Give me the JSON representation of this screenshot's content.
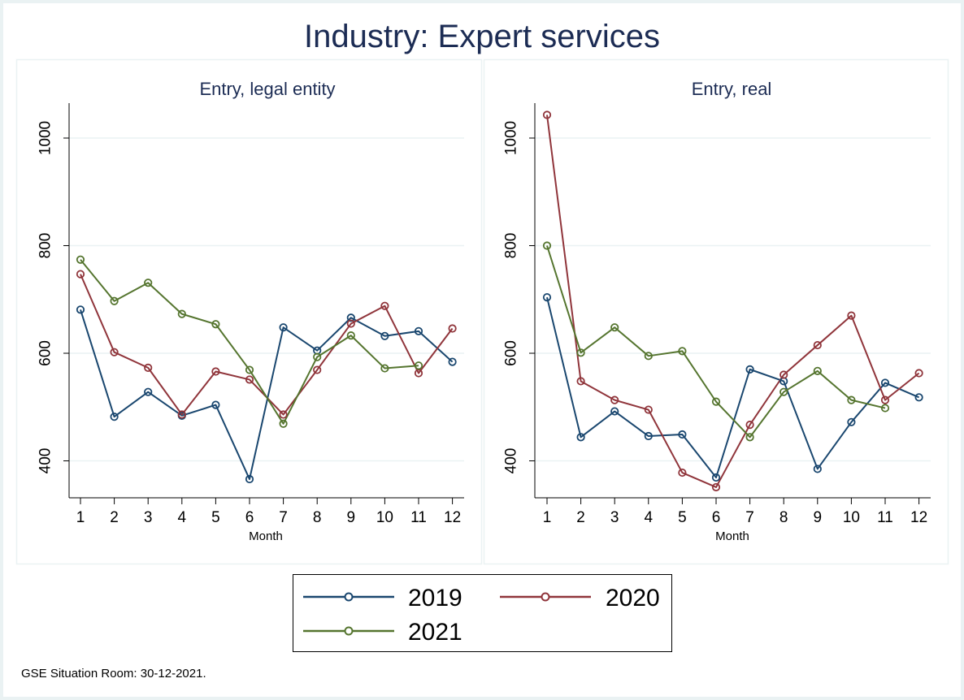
{
  "chart_data": {
    "type": "line",
    "title": "Industry: Expert services",
    "note": "GSE Situation Room: 30-12-2021.",
    "legend": {
      "placement": "bottom",
      "entries": [
        {
          "name": "2019",
          "color": "#1a476f"
        },
        {
          "name": "2020",
          "color": "#90353b"
        },
        {
          "name": "2021",
          "color": "#55752f"
        }
      ]
    },
    "panels": [
      {
        "title": "Entry, legal entity",
        "xlabel": "Month",
        "ylabel": "",
        "x": [
          1,
          2,
          3,
          4,
          5,
          6,
          7,
          8,
          9,
          10,
          11,
          12
        ],
        "x_ticks": [
          "1",
          "2",
          "3",
          "4",
          "5",
          "6",
          "7",
          "8",
          "9",
          "10",
          "11",
          "12"
        ],
        "y_ticks": [
          "400",
          "600",
          "800",
          "1000"
        ],
        "ylim": [
          330,
          1065
        ],
        "grid": true,
        "series": [
          {
            "name": "2019",
            "color": "#1a476f",
            "values": [
              681,
              482,
              528,
              484,
              504,
              366,
              648,
              605,
              666,
              632,
              641,
              584
            ]
          },
          {
            "name": "2020",
            "color": "#90353b",
            "values": [
              747,
              602,
              573,
              486,
              566,
              551,
              486,
              569,
              655,
              688,
              563,
              646
            ]
          },
          {
            "name": "2021",
            "color": "#55752f",
            "values": [
              774,
              697,
              731,
              673,
              654,
              569,
              469,
              593,
              633,
              572,
              577,
              null
            ]
          }
        ]
      },
      {
        "title": "Entry, real",
        "xlabel": "Month",
        "ylabel": "",
        "x": [
          1,
          2,
          3,
          4,
          5,
          6,
          7,
          8,
          9,
          10,
          11,
          12
        ],
        "x_ticks": [
          "1",
          "2",
          "3",
          "4",
          "5",
          "6",
          "7",
          "8",
          "9",
          "10",
          "11",
          "12"
        ],
        "y_ticks": [
          "400",
          "600",
          "800",
          "1000"
        ],
        "ylim": [
          330,
          1065
        ],
        "grid": true,
        "series": [
          {
            "name": "2019",
            "color": "#1a476f",
            "values": [
              704,
              444,
              492,
              446,
              449,
              369,
              570,
              548,
              385,
              472,
              545,
              518
            ]
          },
          {
            "name": "2020",
            "color": "#90353b",
            "values": [
              1043,
              548,
              513,
              495,
              378,
              351,
              467,
              560,
              615,
              670,
              513,
              563
            ]
          },
          {
            "name": "2021",
            "color": "#55752f",
            "values": [
              800,
              601,
              648,
              595,
              604,
              510,
              444,
              528,
              567,
              513,
              498,
              null
            ]
          }
        ]
      }
    ]
  }
}
